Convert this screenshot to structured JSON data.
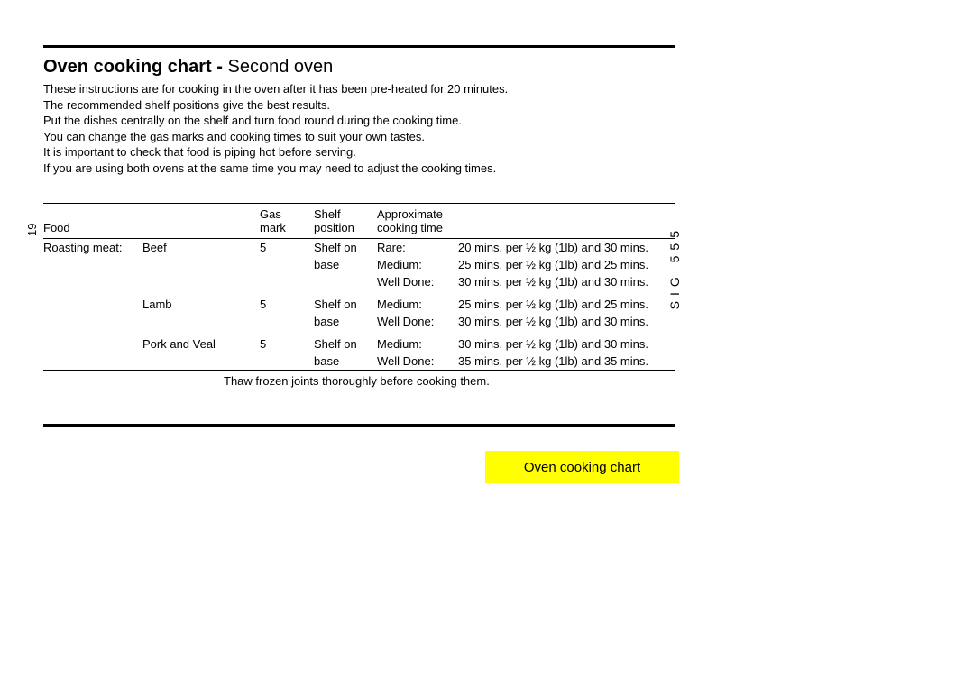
{
  "title_bold": "Oven cooking chart - ",
  "title_rest": "Second oven",
  "intro_lines": [
    "These instructions are for cooking in the oven after it has been pre-heated for 20 minutes.",
    "The recommended shelf positions give the best results.",
    "Put the dishes centrally on the shelf and turn food round during the cooking time.",
    "You can change the gas marks and cooking times to suit your own tastes.",
    "It is important to check that food is piping hot before serving.",
    "If you are using both ovens at the same time you may need to adjust the cooking times."
  ],
  "page_number_left": "19",
  "side_label": "SIG 555",
  "headers": {
    "food": "Food",
    "gas1": "Gas",
    "gas2": "mark",
    "shelf1": "Shelf",
    "shelf2": "position",
    "approx1": "Approximate",
    "approx2": "cooking time"
  },
  "category_label": "Roasting meat:",
  "groups": [
    {
      "food": "Beef",
      "gas": "5",
      "shelf": [
        "Shelf on",
        "base"
      ],
      "rows": [
        {
          "done": "Rare:",
          "time": "20 mins. per ½ kg (1lb) and 30 mins."
        },
        {
          "done": "Medium:",
          "time": "25 mins. per ½ kg (1lb) and 25 mins."
        },
        {
          "done": "Well Done:",
          "time": "30 mins. per ½ kg (1lb) and 30 mins."
        }
      ]
    },
    {
      "food": "Lamb",
      "gas": "5",
      "shelf": [
        "Shelf on",
        "base"
      ],
      "rows": [
        {
          "done": "Medium:",
          "time": "25 mins. per ½ kg (1lb) and 25 mins."
        },
        {
          "done": "Well Done:",
          "time": "30 mins. per ½ kg (1lb) and 30 mins."
        }
      ]
    },
    {
      "food": "Pork and Veal",
      "gas": "5",
      "shelf": [
        "Shelf on",
        "base"
      ],
      "rows": [
        {
          "done": "Medium:",
          "time": "30 mins. per ½ kg (1lb) and 30 mins."
        },
        {
          "done": "Well Done:",
          "time": "35 mins. per ½ kg (1lb) and 35 mins."
        }
      ]
    }
  ],
  "footnote": "Thaw frozen joints thoroughly before cooking them.",
  "yellow_tab": "Oven cooking chart",
  "colors": {
    "highlight": "#ffff00",
    "text": "#000000",
    "bg": "#ffffff"
  }
}
